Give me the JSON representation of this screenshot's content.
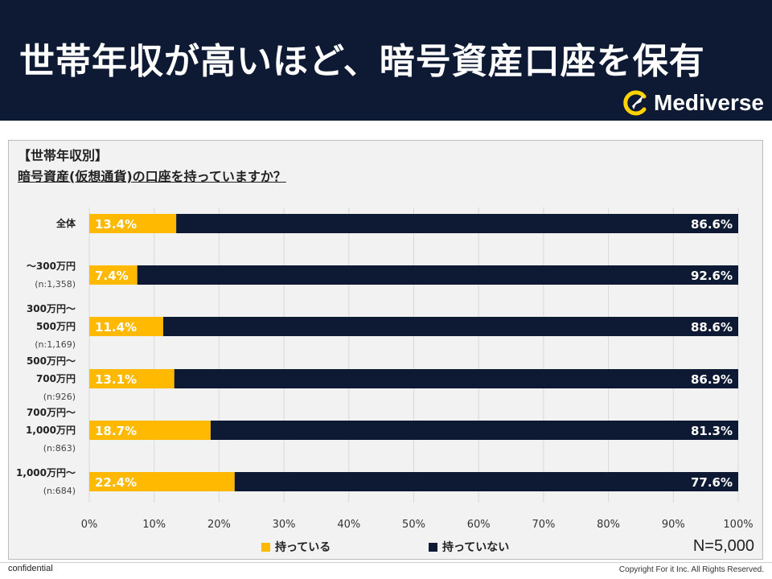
{
  "header": {
    "title": "世帯年収が高いほど、暗号資産口座を保有",
    "brand": "Mediverse"
  },
  "chart_meta": {
    "heading_line1": "【世帯年収別】",
    "heading_line2": "暗号資産(仮想通貨)の口座を持っていますか？",
    "sample_size": "N=5,000"
  },
  "colors": {
    "header_bg": "#0e1a33",
    "yes": "#ffb900",
    "no": "#0e1a33",
    "brand_accent": "#ffd200"
  },
  "chart_data": {
    "type": "bar",
    "orientation": "horizontal-stacked-100",
    "categories": [
      [
        "全体"
      ],
      [
        "～300万円",
        "(n:1,358)"
      ],
      [
        "300万円～",
        "500万円",
        "(n:1,169)"
      ],
      [
        "500万円～",
        "700万円",
        "(n:926)"
      ],
      [
        "700万円～",
        "1,000万円",
        "(n:863)"
      ],
      [
        "1,000万円～",
        "(n:684)"
      ]
    ],
    "series": [
      {
        "name": "持っている",
        "values": [
          13.4,
          7.4,
          11.4,
          13.1,
          18.7,
          22.4
        ]
      },
      {
        "name": "持っていない",
        "values": [
          86.6,
          92.6,
          88.6,
          86.9,
          81.3,
          77.6
        ]
      }
    ],
    "value_labels": {
      "yes": [
        "13.4%",
        "7.4%",
        "11.4%",
        "13.1%",
        "18.7%",
        "22.4%"
      ],
      "no": [
        "86.6%",
        "92.6%",
        "88.6%",
        "86.9%",
        "81.3%",
        "77.6%"
      ]
    },
    "x_ticks": [
      "0%",
      "10%",
      "20%",
      "30%",
      "40%",
      "50%",
      "60%",
      "70%",
      "80%",
      "90%",
      "100%"
    ],
    "xlim": [
      0,
      100
    ],
    "grid": true,
    "legend": "bottom"
  },
  "footer": {
    "left": "confidential",
    "right": "Copyright For it Inc. All Rights Reserved."
  }
}
